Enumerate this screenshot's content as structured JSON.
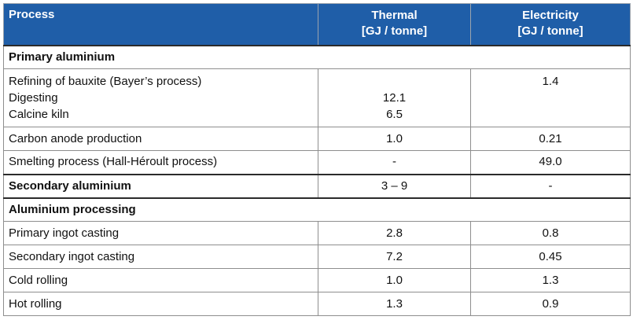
{
  "header": {
    "process": "Process",
    "thermal": [
      "Thermal",
      "[GJ / tonne]"
    ],
    "electricity": [
      "Electricity",
      "[GJ / tonne]"
    ]
  },
  "sections": {
    "primary": "Primary aluminium",
    "processing": "Aluminium processing"
  },
  "rows": {
    "refining": {
      "labels": [
        "Refining of bauxite (Bayer’s process)",
        "Digesting",
        "Calcine kiln"
      ],
      "thermal": [
        "",
        "12.1",
        "6.5"
      ],
      "electricity": [
        "1.4",
        "",
        ""
      ]
    },
    "anode": {
      "label": "Carbon anode production",
      "thermal": "1.0",
      "electricity": "0.21"
    },
    "smelting": {
      "label": "Smelting process (Hall-Héroult process)",
      "thermal": "-",
      "electricity": "49.0"
    },
    "secondary": {
      "label": "Secondary aluminium",
      "thermal": "3 – 9",
      "electricity": "-"
    },
    "primary_ingot": {
      "label": "Primary ingot casting",
      "thermal": "2.8",
      "electricity": "0.8"
    },
    "secondary_ingot": {
      "label": "Secondary ingot casting",
      "thermal": "7.2",
      "electricity": "0.45"
    },
    "cold_rolling": {
      "label": "Cold rolling",
      "thermal": "1.0",
      "electricity": "1.3"
    },
    "hot_rolling": {
      "label": "Hot rolling",
      "thermal": "1.3",
      "electricity": "0.9"
    }
  }
}
